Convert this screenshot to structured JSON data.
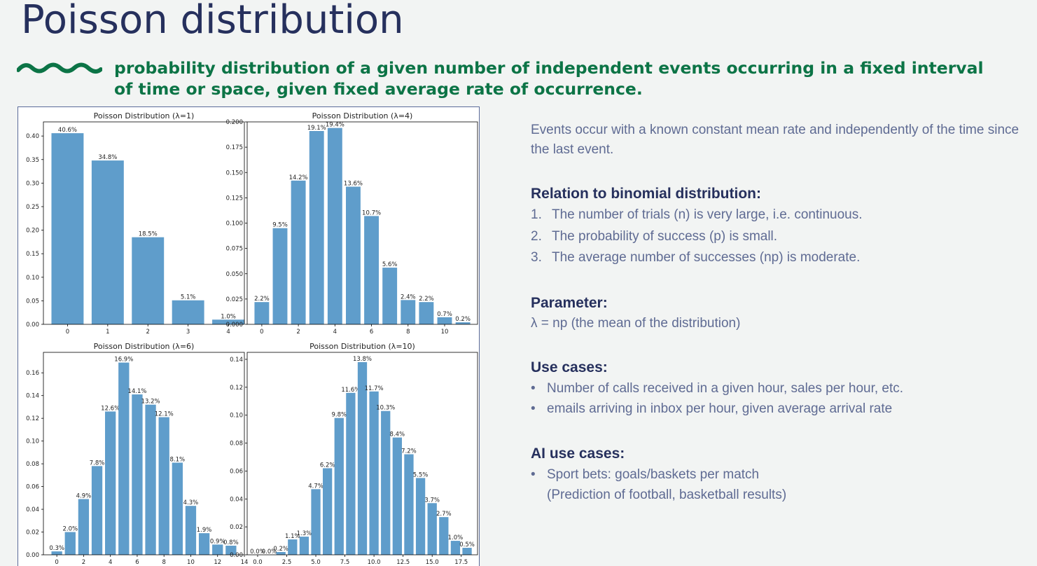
{
  "slide": {
    "title": "Poisson distribution",
    "subtitle": "probability distribution of a given number of independent events occurring in a fixed interval of time or space, given fixed average rate of occurrence.",
    "accent_color": "#0c7446",
    "title_color": "#26305d",
    "bar_color": "#5f9dcb"
  },
  "right": {
    "intro": "Events occur with a known constant mean rate and independently of the time since the last event.",
    "relation": {
      "heading": "Relation to binomial distribution:",
      "items": [
        {
          "num": "1.",
          "text": "The number of trials (n) is very large, i.e. continuous."
        },
        {
          "num": "2.",
          "text": "The probability of success (p) is small."
        },
        {
          "num": "3.",
          "text": "The average number of successes (np) is moderate."
        }
      ]
    },
    "parameter": {
      "heading": "Parameter:",
      "text": "λ = np (the mean of the distribution)"
    },
    "use_cases": {
      "heading": "Use cases:",
      "items": [
        "Number of calls received in a given hour, sales per hour, etc.",
        "emails arriving in inbox per hour, given average arrival rate"
      ]
    },
    "ai_use_cases": {
      "heading": "AI use cases:",
      "items": [
        "Sport bets: goals/baskets per match",
        "(Prediction of football, basketball results)"
      ]
    }
  },
  "chart_data": [
    {
      "type": "bar",
      "title": "Poisson Distribution (λ=1)",
      "x": [
        0,
        1,
        2,
        3,
        4
      ],
      "values": [
        0.406,
        0.348,
        0.185,
        0.051,
        0.01
      ],
      "labels": [
        "40.6%",
        "34.8%",
        "18.5%",
        "5.1%",
        "1.0%"
      ],
      "xlim": [
        -0.6,
        4.4
      ],
      "ylim": [
        0,
        0.43
      ],
      "xticks": [
        0,
        1,
        2,
        3,
        4
      ],
      "xtick_labels": [
        "0",
        "1",
        "2",
        "3",
        "4"
      ],
      "yticks": [
        0,
        0.05,
        0.1,
        0.15,
        0.2,
        0.25,
        0.3,
        0.35,
        0.4
      ],
      "ytick_labels": [
        "0.00",
        "0.05",
        "0.10",
        "0.15",
        "0.20",
        "0.25",
        "0.30",
        "0.35",
        "0.40"
      ]
    },
    {
      "type": "bar",
      "title": "Poisson Distribution (λ=4)",
      "x": [
        0,
        1,
        2,
        3,
        4,
        5,
        6,
        7,
        8,
        9,
        10,
        11
      ],
      "values": [
        0.022,
        0.095,
        0.142,
        0.191,
        0.194,
        0.136,
        0.107,
        0.056,
        0.024,
        0.022,
        0.007,
        0.002
      ],
      "labels": [
        "2.2%",
        "9.5%",
        "14.2%",
        "19.1%",
        "19.4%",
        "13.6%",
        "10.7%",
        "5.6%",
        "2.4%",
        "2.2%",
        "0.7%",
        "0.2%"
      ],
      "xlim": [
        -0.8,
        11.8
      ],
      "ylim": [
        0,
        0.2
      ],
      "xticks": [
        0,
        2,
        4,
        6,
        8,
        10
      ],
      "xtick_labels": [
        "0",
        "2",
        "4",
        "6",
        "8",
        "10"
      ],
      "yticks": [
        0,
        0.025,
        0.05,
        0.075,
        0.1,
        0.125,
        0.15,
        0.175,
        0.2
      ],
      "ytick_labels": [
        "0.000",
        "0.025",
        "0.050",
        "0.075",
        "0.100",
        "0.125",
        "0.150",
        "0.175",
        "0.200"
      ]
    },
    {
      "type": "bar",
      "title": "Poisson Distribution (λ=6)",
      "x": [
        0,
        1,
        2,
        3,
        4,
        5,
        6,
        7,
        8,
        9,
        10,
        11,
        12,
        13
      ],
      "values": [
        0.003,
        0.02,
        0.049,
        0.078,
        0.126,
        0.169,
        0.141,
        0.132,
        0.121,
        0.081,
        0.043,
        0.019,
        0.009,
        0.008
      ],
      "labels": [
        "0.3%",
        "2.0%",
        "4.9%",
        "7.8%",
        "12.6%",
        "16.9%",
        "14.1%",
        "13.2%",
        "12.1%",
        "8.1%",
        "4.3%",
        "1.9%",
        "0.9%",
        "0.8%"
      ],
      "xlim": [
        -1,
        14
      ],
      "ylim": [
        0,
        0.178
      ],
      "xticks": [
        0,
        2,
        4,
        6,
        8,
        10,
        12,
        14
      ],
      "xtick_labels": [
        "0",
        "2",
        "4",
        "6",
        "8",
        "10",
        "12",
        "14"
      ],
      "yticks": [
        0,
        0.02,
        0.04,
        0.06,
        0.08,
        0.1,
        0.12,
        0.14,
        0.16
      ],
      "ytick_labels": [
        "0.00",
        "0.02",
        "0.04",
        "0.06",
        "0.08",
        "0.10",
        "0.12",
        "0.14",
        "0.16"
      ]
    },
    {
      "type": "bar",
      "title": "Poisson Distribution (λ=10)",
      "x": [
        0,
        1,
        2,
        3,
        4,
        5,
        6,
        7,
        8,
        9,
        10,
        11,
        12,
        13,
        14,
        15,
        16,
        17,
        18
      ],
      "values": [
        0.0,
        0.0,
        0.002,
        0.011,
        0.013,
        0.047,
        0.062,
        0.098,
        0.116,
        0.138,
        0.117,
        0.103,
        0.084,
        0.072,
        0.055,
        0.037,
        0.027,
        0.01,
        0.005
      ],
      "labels": [
        "0.0%",
        "0.0%",
        "0.2%",
        "1.1%",
        "1.3%",
        "4.7%",
        "6.2%",
        "9.8%",
        "11.6%",
        "13.8%",
        "11.7%",
        "10.3%",
        "8.4%",
        "7.2%",
        "5.5%",
        "3.7%",
        "2.7%",
        "1.0%",
        "0.5%"
      ],
      "xlim": [
        -0.9,
        18.9
      ],
      "ylim": [
        0,
        0.145
      ],
      "xticks": [
        0,
        2.5,
        5,
        7.5,
        10,
        12.5,
        15,
        17.5
      ],
      "xtick_labels": [
        "0.0",
        "2.5",
        "5.0",
        "7.5",
        "10.0",
        "12.5",
        "15.0",
        "17.5"
      ],
      "yticks": [
        0,
        0.02,
        0.04,
        0.06,
        0.08,
        0.1,
        0.12,
        0.14
      ],
      "ytick_labels": [
        "0.00",
        "0.02",
        "0.04",
        "0.06",
        "0.08",
        "0.10",
        "0.12",
        "0.14"
      ]
    }
  ]
}
